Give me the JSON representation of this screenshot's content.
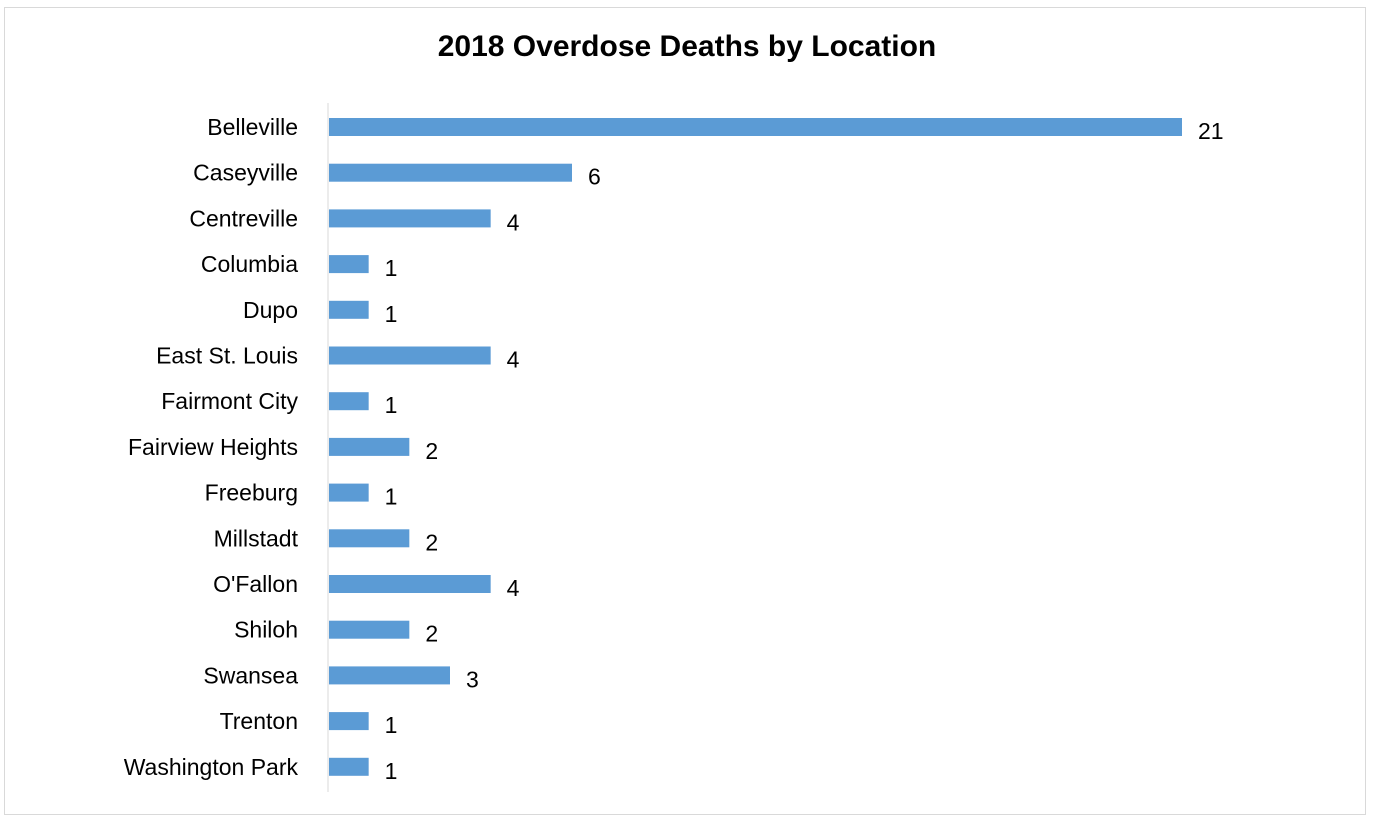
{
  "chart_data": {
    "type": "bar",
    "orientation": "horizontal",
    "title": "2018 Overdose Deaths by Location",
    "xlabel": "",
    "ylabel": "",
    "categories": [
      "Belleville",
      "Caseyville",
      "Centreville",
      "Columbia",
      "Dupo",
      "East St. Louis",
      "Fairmont City",
      "Fairview Heights",
      "Freeburg",
      "Millstadt",
      "O'Fallon",
      "Shiloh",
      "Swansea",
      "Trenton",
      "Washington Park"
    ],
    "values": [
      21,
      6,
      4,
      1,
      1,
      4,
      1,
      2,
      1,
      2,
      4,
      2,
      3,
      1,
      1
    ],
    "xlim": [
      0,
      21
    ],
    "grid": false,
    "legend": "none",
    "data_labels": true,
    "bar_color": "#5b9bd5",
    "axis_color": "#d9d9d9"
  }
}
